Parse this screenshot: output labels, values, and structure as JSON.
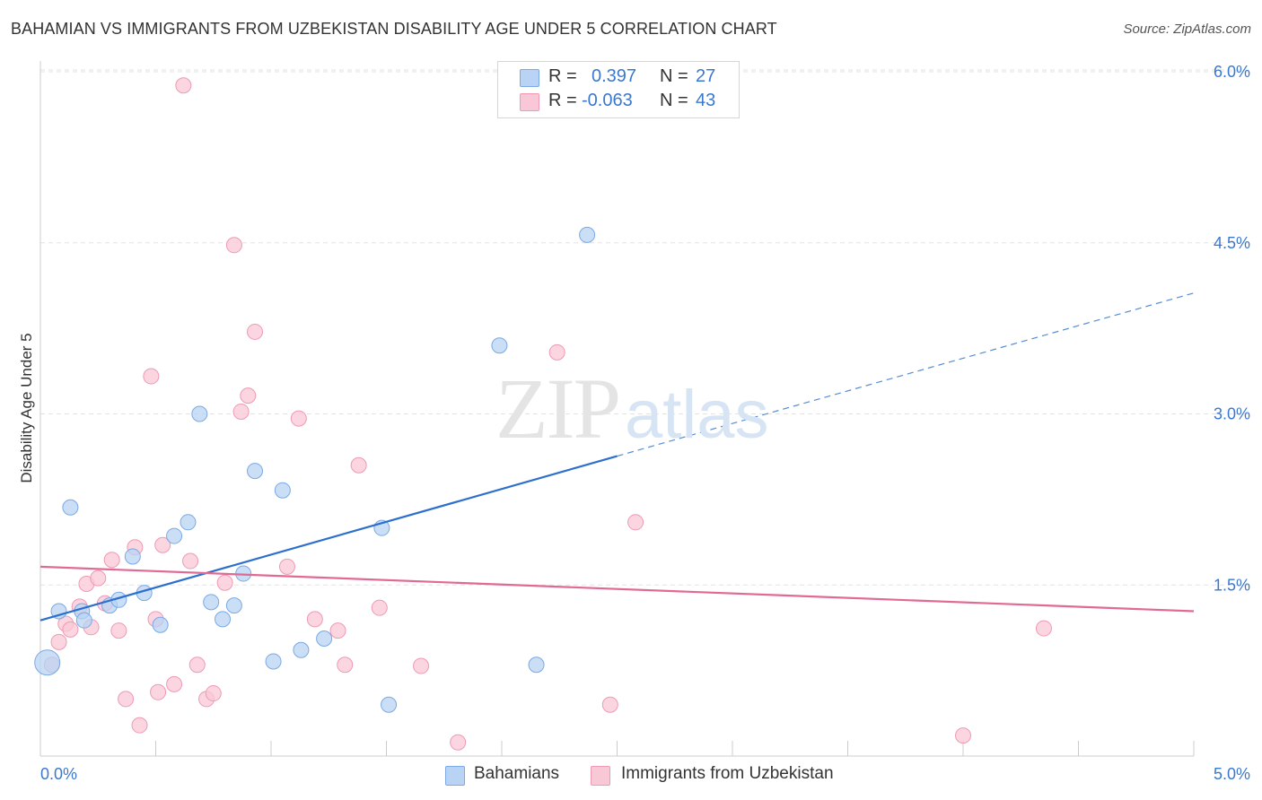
{
  "title": "BAHAMIAN VS IMMIGRANTS FROM UZBEKISTAN DISABILITY AGE UNDER 5 CORRELATION CHART",
  "source": "Source: ZipAtlas.com",
  "watermark": {
    "zip": "ZIP",
    "atlas": "atlas"
  },
  "legend_top": {
    "row1": {
      "r_label": "R =",
      "r_value": "0.397",
      "n_label": "N =",
      "n_value": "27"
    },
    "row2": {
      "r_label": "R =",
      "r_value": "-0.063",
      "n_label": "N =",
      "n_value": "43"
    }
  },
  "legend_bottom": {
    "series1": "Bahamians",
    "series2": "Immigrants from Uzbekistan"
  },
  "colors": {
    "blue_fill": "#b8d3f3",
    "blue_stroke": "#7aa9e6",
    "blue_line": "#2c6fcc",
    "pink_fill": "#f9c8d6",
    "pink_stroke": "#ee9ab3",
    "pink_line": "#e06a94",
    "tick_label": "#3a78d0",
    "grid": "#e3e3e3"
  },
  "chart_data": {
    "type": "scatter",
    "title": "BAHAMIAN VS IMMIGRANTS FROM UZBEKISTAN DISABILITY AGE UNDER 5 CORRELATION CHART",
    "xlabel": "",
    "ylabel": "Disability Age Under 5",
    "xlim": [
      0,
      5.0
    ],
    "ylim": [
      0,
      6.2
    ],
    "x_tick_labels": [
      "0.0%",
      "5.0%"
    ],
    "y_ticks": [
      1.5,
      3.0,
      4.5,
      6.0
    ],
    "y_tick_labels": [
      "1.5%",
      "3.0%",
      "4.5%",
      "6.0%"
    ],
    "grid": "horizontal dashed",
    "legend_placement": "top-center and bottom",
    "series": [
      {
        "name": "Bahamians",
        "R": 0.397,
        "N": 27,
        "trend": {
          "x0": 0.0,
          "y0": 1.19,
          "x1": 2.5,
          "y1": 2.63,
          "dashed_to_x": 5.0,
          "dashed_to_y": 4.06
        },
        "points": [
          [
            0.03,
            0.82
          ],
          [
            0.08,
            1.27
          ],
          [
            0.13,
            2.18
          ],
          [
            0.18,
            1.27
          ],
          [
            0.19,
            1.19
          ],
          [
            0.3,
            1.32
          ],
          [
            0.34,
            1.37
          ],
          [
            0.4,
            1.75
          ],
          [
            0.45,
            1.43
          ],
          [
            0.52,
            1.15
          ],
          [
            0.58,
            1.93
          ],
          [
            0.64,
            2.05
          ],
          [
            0.69,
            3.0
          ],
          [
            0.74,
            1.35
          ],
          [
            0.79,
            1.2
          ],
          [
            0.84,
            1.32
          ],
          [
            0.88,
            1.6
          ],
          [
            0.93,
            2.5
          ],
          [
            1.01,
            0.83
          ],
          [
            1.05,
            2.33
          ],
          [
            1.13,
            0.93
          ],
          [
            1.23,
            1.03
          ],
          [
            1.48,
            2.0
          ],
          [
            1.51,
            0.45
          ],
          [
            1.99,
            3.6
          ],
          [
            2.15,
            0.8
          ],
          [
            2.37,
            4.57
          ]
        ]
      },
      {
        "name": "Immigrants from Uzbekistan",
        "R": -0.063,
        "N": 43,
        "trend": {
          "x0": 0.0,
          "y0": 1.66,
          "x1": 5.0,
          "y1": 1.27
        },
        "points": [
          [
            0.05,
            0.8
          ],
          [
            0.08,
            1.0
          ],
          [
            0.11,
            1.16
          ],
          [
            0.13,
            1.11
          ],
          [
            0.17,
            1.31
          ],
          [
            0.22,
            1.13
          ],
          [
            0.2,
            1.51
          ],
          [
            0.25,
            1.56
          ],
          [
            0.28,
            1.34
          ],
          [
            0.31,
            1.72
          ],
          [
            0.34,
            1.1
          ],
          [
            0.37,
            0.5
          ],
          [
            0.41,
            1.83
          ],
          [
            0.43,
            0.27
          ],
          [
            0.48,
            3.33
          ],
          [
            0.5,
            1.2
          ],
          [
            0.51,
            0.56
          ],
          [
            0.53,
            1.85
          ],
          [
            0.58,
            0.63
          ],
          [
            0.62,
            5.88
          ],
          [
            0.65,
            1.71
          ],
          [
            0.68,
            0.8
          ],
          [
            0.72,
            0.5
          ],
          [
            0.75,
            0.55
          ],
          [
            0.8,
            1.52
          ],
          [
            0.84,
            4.48
          ],
          [
            0.87,
            3.02
          ],
          [
            0.9,
            3.16
          ],
          [
            0.93,
            3.72
          ],
          [
            1.12,
            2.96
          ],
          [
            1.19,
            1.2
          ],
          [
            1.29,
            1.1
          ],
          [
            1.32,
            0.8
          ],
          [
            1.38,
            2.55
          ],
          [
            1.47,
            1.3
          ],
          [
            1.65,
            0.79
          ],
          [
            1.81,
            0.12
          ],
          [
            2.24,
            3.54
          ],
          [
            2.47,
            0.45
          ],
          [
            2.58,
            2.05
          ],
          [
            4.0,
            0.18
          ],
          [
            4.35,
            1.12
          ],
          [
            1.07,
            1.66
          ]
        ]
      }
    ]
  }
}
